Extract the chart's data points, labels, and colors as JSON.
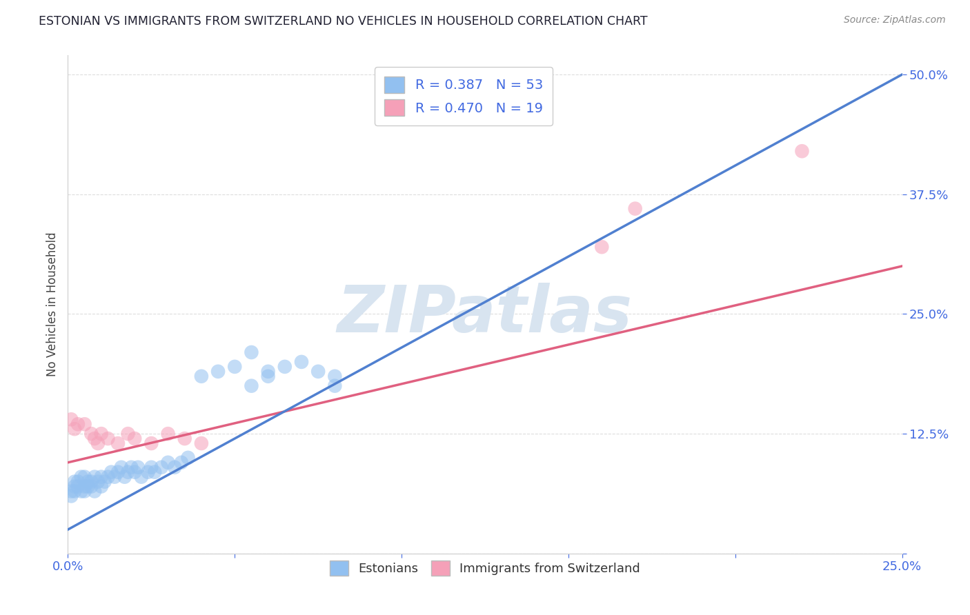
{
  "title": "ESTONIAN VS IMMIGRANTS FROM SWITZERLAND NO VEHICLES IN HOUSEHOLD CORRELATION CHART",
  "source": "Source: ZipAtlas.com",
  "ylabel": "No Vehicles in Household",
  "watermark": "ZIPatlas",
  "xlim": [
    0.0,
    0.25
  ],
  "ylim": [
    0.0,
    0.52
  ],
  "xtick_positions": [
    0.0,
    0.05,
    0.1,
    0.15,
    0.2,
    0.25
  ],
  "xticklabels": [
    "0.0%",
    "",
    "",
    "",
    "",
    "25.0%"
  ],
  "ytick_positions": [
    0.0,
    0.125,
    0.25,
    0.375,
    0.5
  ],
  "yticklabels": [
    "",
    "12.5%",
    "25.0%",
    "37.5%",
    "50.0%"
  ],
  "legend_R1": "0.387",
  "legend_N1": "53",
  "legend_R2": "0.470",
  "legend_N2": "19",
  "color_blue": "#92C0F0",
  "color_pink": "#F5A0B8",
  "color_blue_line": "#5080D0",
  "color_pink_line": "#E06080",
  "color_gray_dash": "#AABBCC",
  "grid_color": "#DDDDDD",
  "background_color": "#FFFFFF",
  "title_color": "#222233",
  "axis_color": "#4169E1",
  "watermark_color": "#D8E4F0",
  "blue_scatter_x": [
    0.001,
    0.001,
    0.002,
    0.002,
    0.002,
    0.003,
    0.003,
    0.004,
    0.004,
    0.005,
    0.005,
    0.005,
    0.006,
    0.006,
    0.007,
    0.007,
    0.008,
    0.008,
    0.009,
    0.01,
    0.01,
    0.011,
    0.012,
    0.013,
    0.014,
    0.015,
    0.016,
    0.017,
    0.018,
    0.019,
    0.02,
    0.021,
    0.022,
    0.024,
    0.025,
    0.026,
    0.028,
    0.03,
    0.032,
    0.034,
    0.036,
    0.04,
    0.045,
    0.05,
    0.055,
    0.06,
    0.065,
    0.07,
    0.075,
    0.08,
    0.055,
    0.06,
    0.08
  ],
  "blue_scatter_y": [
    0.06,
    0.065,
    0.065,
    0.07,
    0.075,
    0.07,
    0.075,
    0.065,
    0.08,
    0.065,
    0.07,
    0.08,
    0.07,
    0.075,
    0.07,
    0.075,
    0.065,
    0.08,
    0.075,
    0.07,
    0.08,
    0.075,
    0.08,
    0.085,
    0.08,
    0.085,
    0.09,
    0.08,
    0.085,
    0.09,
    0.085,
    0.09,
    0.08,
    0.085,
    0.09,
    0.085,
    0.09,
    0.095,
    0.09,
    0.095,
    0.1,
    0.185,
    0.19,
    0.195,
    0.21,
    0.19,
    0.195,
    0.2,
    0.19,
    0.185,
    0.175,
    0.185,
    0.175
  ],
  "pink_scatter_x": [
    0.001,
    0.002,
    0.003,
    0.005,
    0.007,
    0.008,
    0.009,
    0.01,
    0.012,
    0.015,
    0.018,
    0.02,
    0.025,
    0.03,
    0.035,
    0.04,
    0.22,
    0.17,
    0.16
  ],
  "pink_scatter_y": [
    0.14,
    0.13,
    0.135,
    0.135,
    0.125,
    0.12,
    0.115,
    0.125,
    0.12,
    0.115,
    0.125,
    0.12,
    0.115,
    0.125,
    0.12,
    0.115,
    0.42,
    0.36,
    0.32
  ],
  "blue_line_x": [
    0.0,
    0.25
  ],
  "blue_line_y": [
    0.025,
    0.5
  ],
  "pink_line_x": [
    0.0,
    0.25
  ],
  "pink_line_y": [
    0.095,
    0.3
  ]
}
